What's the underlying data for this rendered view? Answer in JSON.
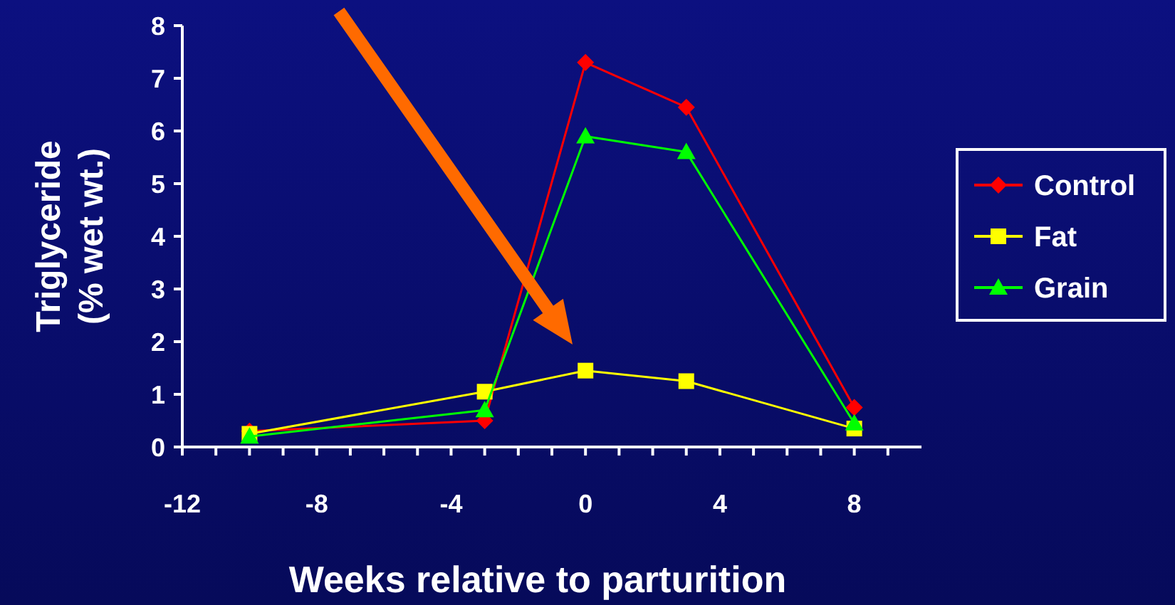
{
  "chart_data": {
    "type": "line",
    "xlabel": "Weeks relative to parturition",
    "ylabel": "Triglyceride\n(% wet wt.)",
    "x": [
      -10,
      -3,
      0,
      3,
      8
    ],
    "series": [
      {
        "name": "Control",
        "color": "#ff0000",
        "marker": "diamond",
        "values": [
          0.3,
          0.5,
          7.3,
          6.45,
          0.75
        ]
      },
      {
        "name": "Fat",
        "color": "#ffff00",
        "marker": "square",
        "values": [
          0.25,
          1.05,
          1.45,
          1.25,
          0.35
        ]
      },
      {
        "name": "Grain",
        "color": "#00ff00",
        "marker": "triangle",
        "values": [
          0.2,
          0.7,
          5.9,
          5.6,
          0.45
        ]
      }
    ],
    "xlim": [
      -12,
      10
    ],
    "xticks": [
      -12,
      {
        "value": -11,
        "label": null
      },
      {
        "value": -10,
        "label": null
      },
      {
        "value": -9,
        "label": null
      },
      -8,
      {
        "value": -7,
        "label": null
      },
      {
        "value": -6,
        "label": null
      },
      {
        "value": -5,
        "label": null
      },
      -4,
      {
        "value": -3,
        "label": null
      },
      {
        "value": -2,
        "label": null
      },
      {
        "value": -1,
        "label": null
      },
      0,
      {
        "value": 1,
        "label": null
      },
      {
        "value": 2,
        "label": null
      },
      {
        "value": 3,
        "label": null
      },
      4,
      {
        "value": 5,
        "label": null
      },
      {
        "value": 6,
        "label": null
      },
      {
        "value": 7,
        "label": null
      },
      8,
      {
        "value": 9,
        "label": null
      }
    ],
    "ylim": [
      0,
      8
    ],
    "yticks": [
      0,
      1,
      2,
      3,
      4,
      5,
      6,
      7,
      8
    ],
    "grid": false,
    "legend": "right",
    "line_style": "solid"
  }
}
